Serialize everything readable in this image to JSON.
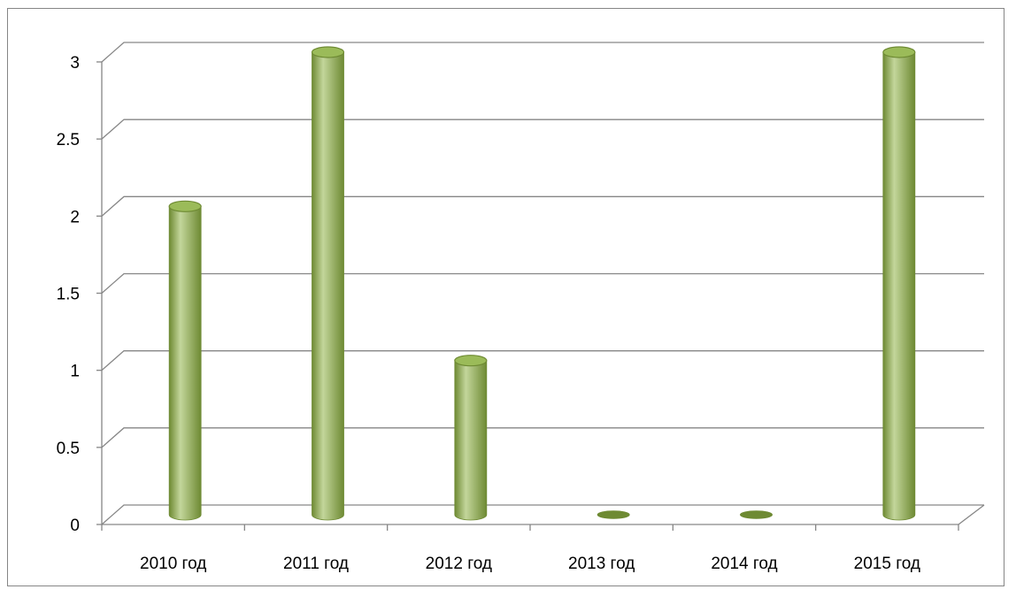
{
  "chart_data": {
    "type": "bar",
    "title": "",
    "xlabel": "",
    "ylabel": "",
    "categories": [
      "2010 год",
      "2011 год",
      "2012 год",
      "2013 год",
      "2014 год",
      "2015 год"
    ],
    "values": [
      2,
      3,
      1,
      0,
      0,
      3
    ],
    "ylim": [
      0,
      3
    ],
    "yticks": [
      "0",
      "0.5",
      "1",
      "1.5",
      "2",
      "2.5",
      "3"
    ],
    "grid": true,
    "legend": "none",
    "bar_shape": "cylinder",
    "colors": {
      "bar": "#9BBB59",
      "bar_light": "#C3D69B",
      "bar_dark": "#6E8A33",
      "gridline": "#868686"
    }
  }
}
